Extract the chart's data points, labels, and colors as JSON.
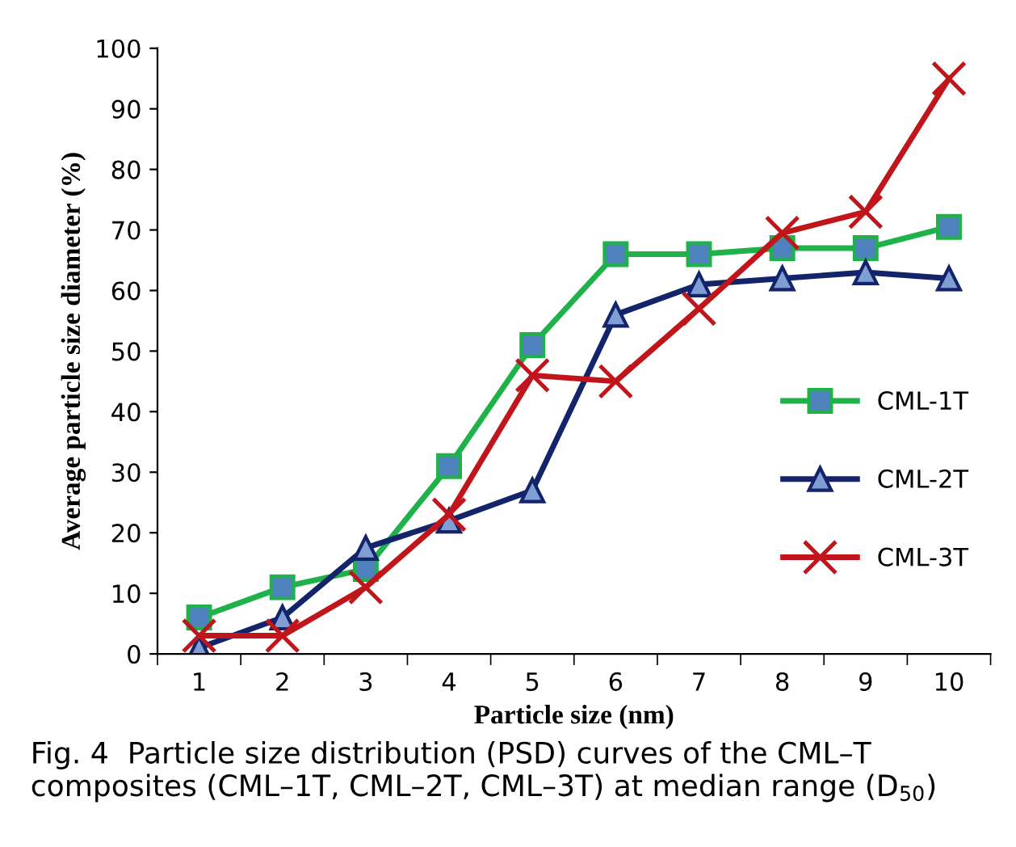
{
  "chart_data": {
    "type": "line",
    "xlabel": "Particle size (nm)",
    "ylabel": "Average particle size diameter (%)",
    "categories": [
      "1",
      "2",
      "3",
      "4",
      "5",
      "6",
      "7",
      "8",
      "9",
      "10"
    ],
    "ylim": [
      0,
      100
    ],
    "yticks": [
      0,
      10,
      20,
      30,
      40,
      50,
      60,
      70,
      80,
      90,
      100
    ],
    "grid": false,
    "legend": "right",
    "series": [
      {
        "name": "CML-1T",
        "color": "#1fb24a",
        "marker": "square",
        "values": [
          6,
          11,
          14,
          31,
          51,
          66,
          66,
          67,
          67,
          70.5
        ]
      },
      {
        "name": "CML-2T",
        "color": "#14246b",
        "marker": "triangle",
        "values": [
          1,
          6,
          17.5,
          22,
          27,
          56,
          61,
          62,
          63,
          62
        ]
      },
      {
        "name": "CML-3T",
        "color": "#c0161b",
        "marker": "cross",
        "values": [
          3,
          3,
          11,
          23,
          46,
          45,
          57,
          69.5,
          73,
          95
        ]
      }
    ],
    "annotations": [
      "Fig. 4  Particle size distribution (PSD) curves of the CML–T composites (CML–1T, CML–2T, CML–3T) at median range (D$_{50}$)"
    ]
  }
}
